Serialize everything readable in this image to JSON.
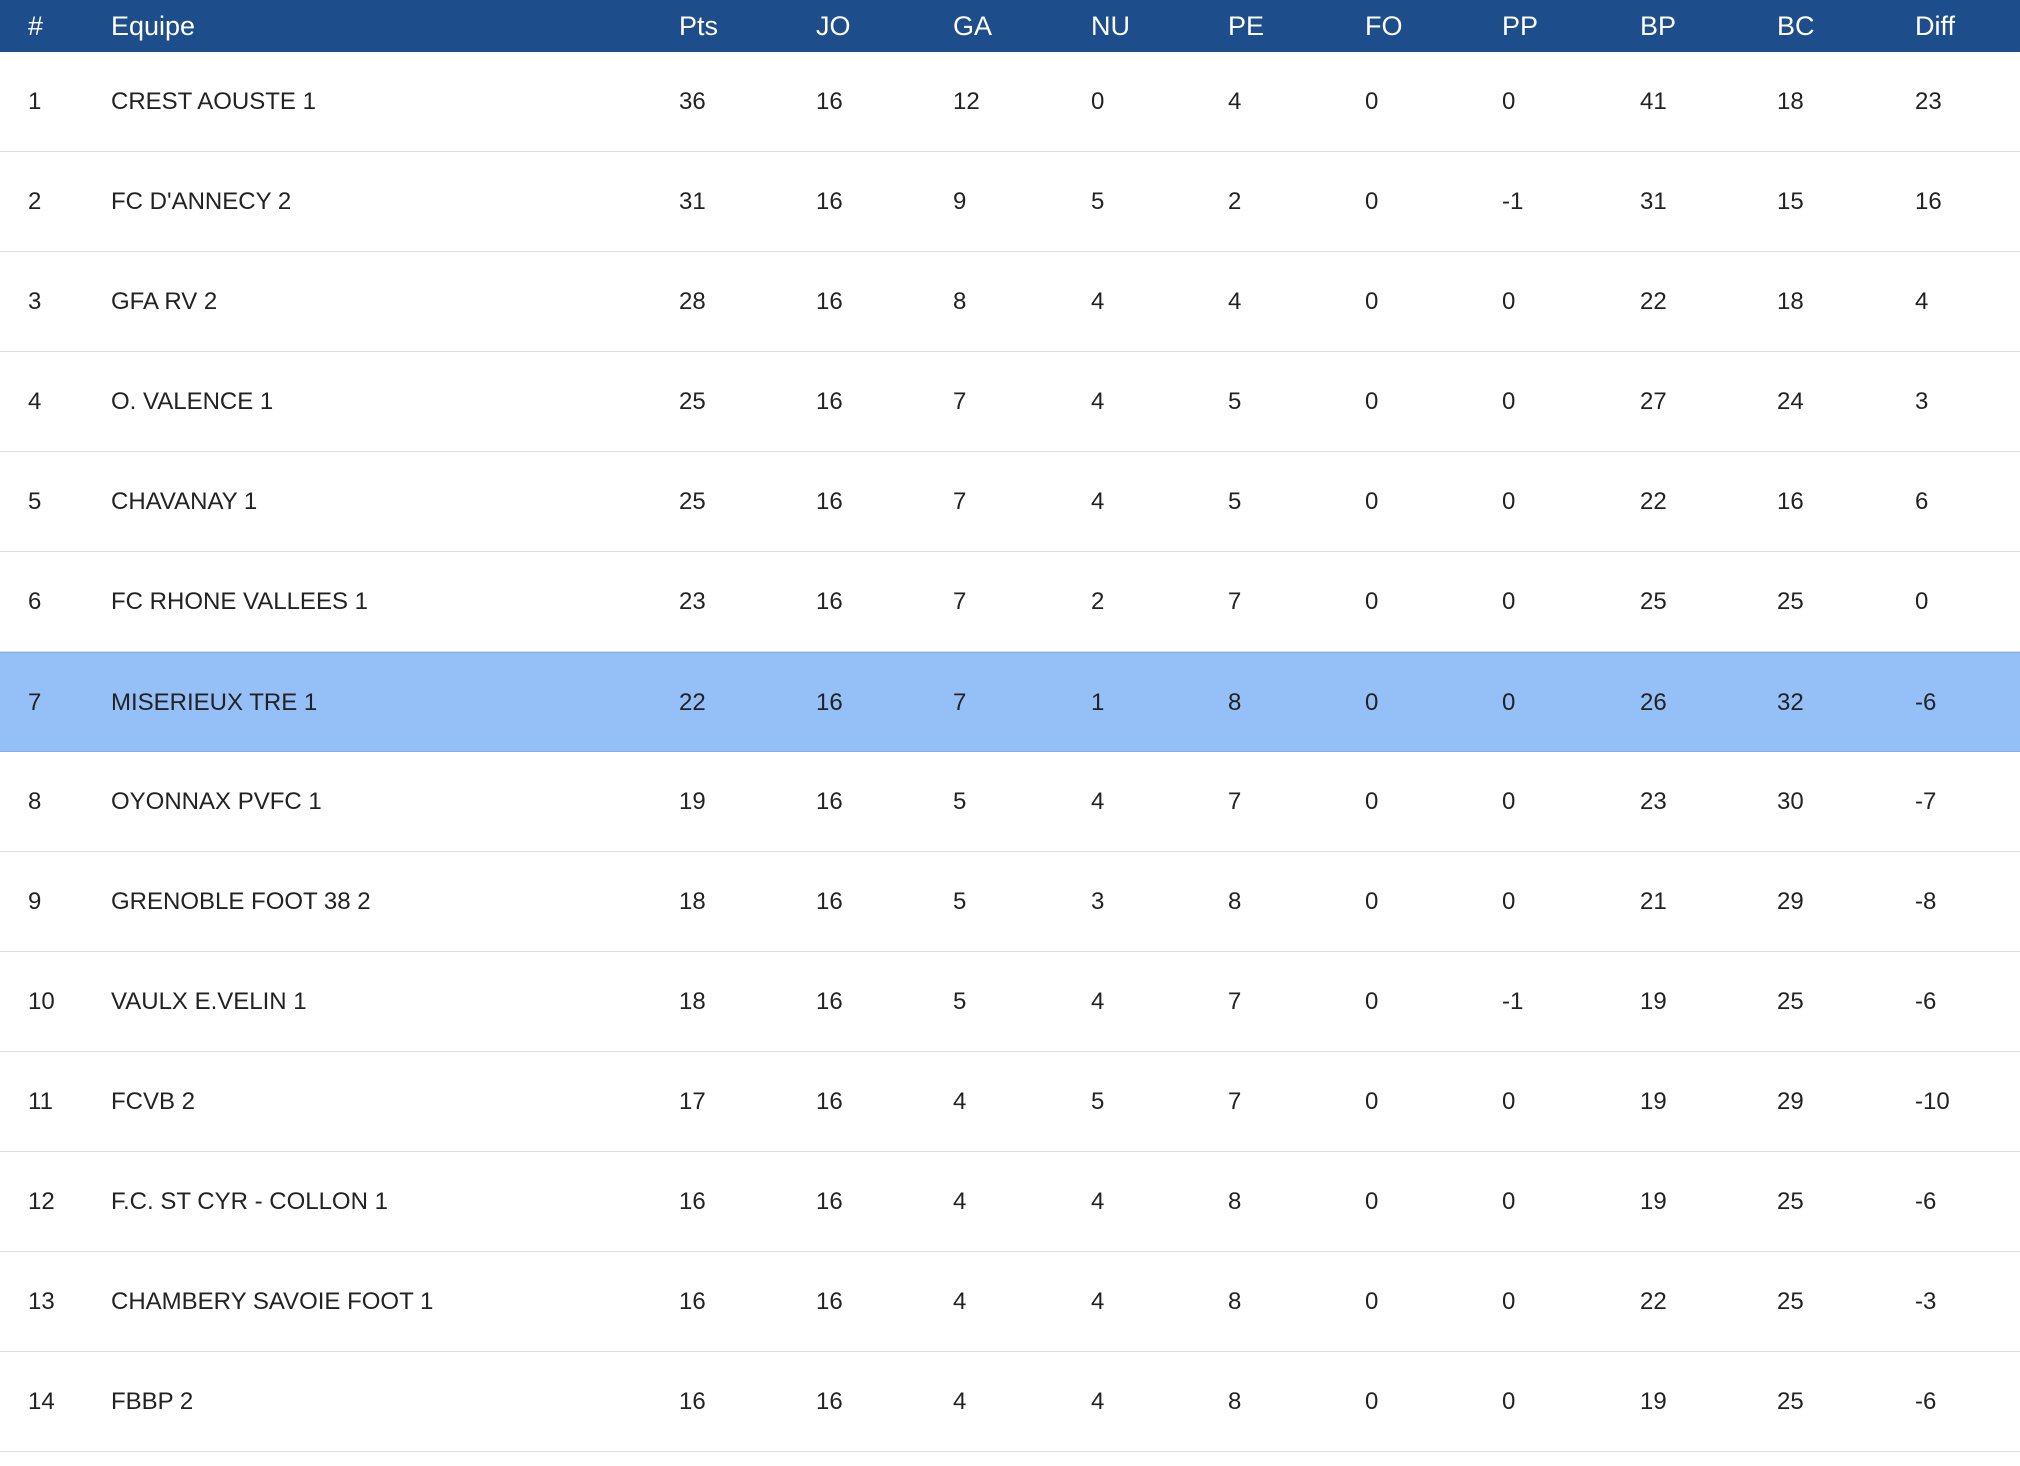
{
  "table": {
    "highlight_color": "#94c0f7",
    "header_color": "#1e4d8c",
    "columns": {
      "rank": "#",
      "team": "Equipe",
      "pts": "Pts",
      "jo": "JO",
      "ga": "GA",
      "nu": "NU",
      "pe": "PE",
      "fo": "FO",
      "pp": "PP",
      "bp": "BP",
      "bc": "BC",
      "diff": "Diff"
    },
    "rows": [
      {
        "rank": "1",
        "team": "CREST AOUSTE 1",
        "pts": "36",
        "jo": "16",
        "ga": "12",
        "nu": "0",
        "pe": "4",
        "fo": "0",
        "pp": "0",
        "bp": "41",
        "bc": "18",
        "diff": "23"
      },
      {
        "rank": "2",
        "team": "FC D'ANNECY 2",
        "pts": "31",
        "jo": "16",
        "ga": "9",
        "nu": "5",
        "pe": "2",
        "fo": "0",
        "pp": "-1",
        "bp": "31",
        "bc": "15",
        "diff": "16"
      },
      {
        "rank": "3",
        "team": "GFA RV 2",
        "pts": "28",
        "jo": "16",
        "ga": "8",
        "nu": "4",
        "pe": "4",
        "fo": "0",
        "pp": "0",
        "bp": "22",
        "bc": "18",
        "diff": "4"
      },
      {
        "rank": "4",
        "team": "O. VALENCE 1",
        "pts": "25",
        "jo": "16",
        "ga": "7",
        "nu": "4",
        "pe": "5",
        "fo": "0",
        "pp": "0",
        "bp": "27",
        "bc": "24",
        "diff": "3"
      },
      {
        "rank": "5",
        "team": "CHAVANAY 1",
        "pts": "25",
        "jo": "16",
        "ga": "7",
        "nu": "4",
        "pe": "5",
        "fo": "0",
        "pp": "0",
        "bp": "22",
        "bc": "16",
        "diff": "6"
      },
      {
        "rank": "6",
        "team": "FC RHONE VALLEES 1",
        "pts": "23",
        "jo": "16",
        "ga": "7",
        "nu": "2",
        "pe": "7",
        "fo": "0",
        "pp": "0",
        "bp": "25",
        "bc": "25",
        "diff": "0"
      },
      {
        "rank": "7",
        "team": "MISERIEUX TRE 1",
        "pts": "22",
        "jo": "16",
        "ga": "7",
        "nu": "1",
        "pe": "8",
        "fo": "0",
        "pp": "0",
        "bp": "26",
        "bc": "32",
        "diff": "-6",
        "highlighted": true
      },
      {
        "rank": "8",
        "team": "OYONNAX PVFC 1",
        "pts": "19",
        "jo": "16",
        "ga": "5",
        "nu": "4",
        "pe": "7",
        "fo": "0",
        "pp": "0",
        "bp": "23",
        "bc": "30",
        "diff": "-7"
      },
      {
        "rank": "9",
        "team": "GRENOBLE FOOT 38 2",
        "pts": "18",
        "jo": "16",
        "ga": "5",
        "nu": "3",
        "pe": "8",
        "fo": "0",
        "pp": "0",
        "bp": "21",
        "bc": "29",
        "diff": "-8"
      },
      {
        "rank": "10",
        "team": "VAULX E.VELIN 1",
        "pts": "18",
        "jo": "16",
        "ga": "5",
        "nu": "4",
        "pe": "7",
        "fo": "0",
        "pp": "-1",
        "bp": "19",
        "bc": "25",
        "diff": "-6"
      },
      {
        "rank": "11",
        "team": "FCVB 2",
        "pts": "17",
        "jo": "16",
        "ga": "4",
        "nu": "5",
        "pe": "7",
        "fo": "0",
        "pp": "0",
        "bp": "19",
        "bc": "29",
        "diff": "-10"
      },
      {
        "rank": "12",
        "team": "F.C. ST CYR - COLLON 1",
        "pts": "16",
        "jo": "16",
        "ga": "4",
        "nu": "4",
        "pe": "8",
        "fo": "0",
        "pp": "0",
        "bp": "19",
        "bc": "25",
        "diff": "-6"
      },
      {
        "rank": "13",
        "team": "CHAMBERY SAVOIE FOOT 1",
        "pts": "16",
        "jo": "16",
        "ga": "4",
        "nu": "4",
        "pe": "8",
        "fo": "0",
        "pp": "0",
        "bp": "22",
        "bc": "25",
        "diff": "-3"
      },
      {
        "rank": "14",
        "team": "FBBP 2",
        "pts": "16",
        "jo": "16",
        "ga": "4",
        "nu": "4",
        "pe": "8",
        "fo": "0",
        "pp": "0",
        "bp": "19",
        "bc": "25",
        "diff": "-6"
      }
    ]
  }
}
